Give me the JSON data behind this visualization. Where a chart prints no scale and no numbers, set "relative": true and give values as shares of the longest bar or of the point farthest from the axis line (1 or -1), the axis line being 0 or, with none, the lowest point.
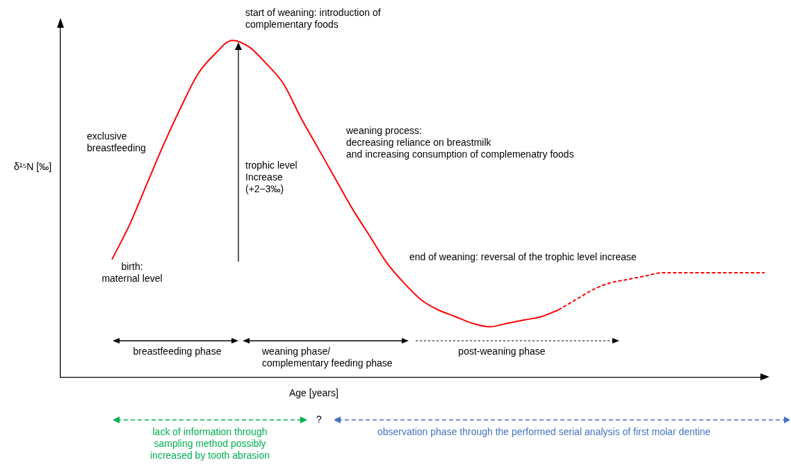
{
  "chart_data": {
    "type": "line",
    "relative": true,
    "xlabel": "Age [years]",
    "ylabel": "δ¹⁵N [‰]",
    "legend": false,
    "grid": false,
    "marker": "none",
    "categories": [
      null,
      null,
      null,
      null,
      null,
      null,
      null,
      null,
      null,
      null,
      null,
      null,
      null,
      null,
      null,
      null,
      null,
      null,
      null,
      null,
      null,
      null,
      null,
      null,
      null,
      null,
      null,
      null,
      null,
      null,
      null,
      null,
      null,
      null,
      null,
      null,
      null,
      null,
      null,
      null,
      null,
      null
    ],
    "series": [
      {
        "color": "#ff0000",
        "line_style": "solid",
        "values": [
          null,
          null,
          null,
          0.35,
          0.45,
          0.57,
          0.69,
          0.8,
          0.9,
          0.96,
          1,
          0.98,
          0.93,
          0.87,
          0.77,
          0.68,
          0.59,
          0.5,
          0.42,
          0.34,
          0.28,
          0.23,
          0.2,
          0.18,
          0.16,
          0.15,
          0.16,
          0.17,
          0.18,
          0.2,
          null,
          null,
          null,
          null,
          null,
          null,
          null,
          null,
          null,
          null,
          null,
          null
        ]
      },
      {
        "color": "#ff0000",
        "line_style": "dashed",
        "values": [
          null,
          null,
          null,
          null,
          null,
          null,
          null,
          null,
          null,
          null,
          null,
          null,
          null,
          null,
          null,
          null,
          null,
          null,
          null,
          null,
          null,
          null,
          null,
          null,
          null,
          null,
          null,
          null,
          null,
          0.2,
          0.23,
          0.26,
          0.28,
          0.29,
          0.3,
          0.31,
          0.31,
          0.31,
          0.31,
          0.31,
          0.31,
          0.31
        ]
      }
    ],
    "annotations": [
      "start of weaning: introduction of\ncomplementary foods",
      "exclusive\nbreastfeeding",
      "trophic level\nIncrease\n(+2−3‰)",
      "weaning process:\ndecreasing reliance on breastmilk\nand increasing consumption of complemenatry foods",
      "end of weaning: reversal of the trophic level increase",
      "birth:\nmaternal level",
      "breastfeeding phase",
      "weaning phase/\ncomplementary feeding phase",
      "post-weaning phase",
      "lack of information through\nsampling method possibly\nincreased by tooth abrasion",
      "?",
      "observation phase through the performed serial analysis of first molar dentine"
    ]
  }
}
